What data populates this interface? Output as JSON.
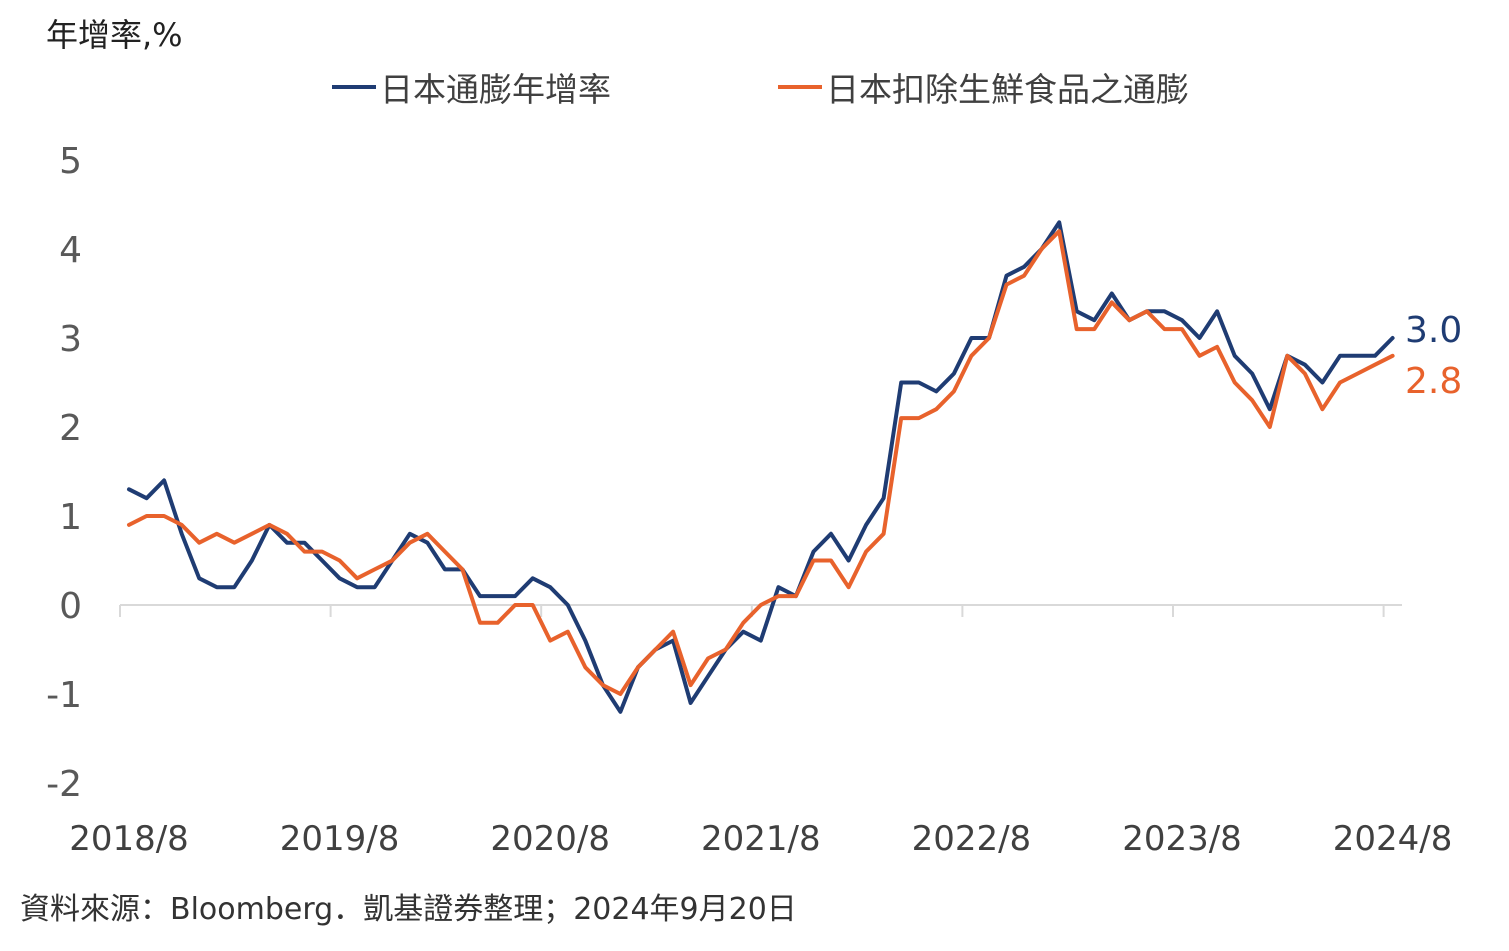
{
  "unit_label": "年增率,%",
  "source_note": "資料來源：Bloomberg．凱基證券整理；2024年9月20日",
  "colors": {
    "headline": "#1F3C73",
    "core": "#E8622C",
    "axis": "#D9D9D9"
  },
  "legend": [
    {
      "name": "日本通膨年增率",
      "color": "#1F3C73"
    },
    {
      "name": "日本扣除生鮮食品之通膨",
      "color": "#E8622C"
    }
  ],
  "chart_data": {
    "type": "line",
    "x_start": "2018/8",
    "x_ticks": [
      "2018/8",
      "2019/8",
      "2020/8",
      "2021/8",
      "2022/8",
      "2023/8",
      "2024/8"
    ],
    "y_ticks": [
      "5",
      "4",
      "3",
      "2",
      "1",
      "0",
      "-1",
      "-2"
    ],
    "ylim": [
      -2,
      5
    ],
    "series": [
      {
        "name": "日本通膨年增率",
        "color": "#1F3C73",
        "end_label": "3.0",
        "values": [
          1.3,
          1.2,
          1.4,
          0.8,
          0.3,
          0.2,
          0.2,
          0.5,
          0.9,
          0.7,
          0.7,
          0.5,
          0.3,
          0.2,
          0.2,
          0.5,
          0.8,
          0.7,
          0.4,
          0.4,
          0.1,
          0.1,
          0.1,
          0.3,
          0.2,
          0.0,
          -0.4,
          -0.9,
          -1.2,
          -0.7,
          -0.5,
          -0.4,
          -1.1,
          -0.8,
          -0.5,
          -0.3,
          -0.4,
          0.2,
          0.1,
          0.6,
          0.8,
          0.5,
          0.9,
          1.2,
          2.5,
          2.5,
          2.4,
          2.6,
          3.0,
          3.0,
          3.7,
          3.8,
          4.0,
          4.3,
          3.3,
          3.2,
          3.5,
          3.2,
          3.3,
          3.3,
          3.2,
          3.0,
          3.3,
          2.8,
          2.6,
          2.2,
          2.8,
          2.7,
          2.5,
          2.8,
          2.8,
          2.8,
          3.0
        ]
      },
      {
        "name": "日本扣除生鮮食品之通膨",
        "color": "#E8622C",
        "end_label": "2.8",
        "values": [
          0.9,
          1.0,
          1.0,
          0.9,
          0.7,
          0.8,
          0.7,
          0.8,
          0.9,
          0.8,
          0.6,
          0.6,
          0.5,
          0.3,
          0.4,
          0.5,
          0.7,
          0.8,
          0.6,
          0.4,
          -0.2,
          -0.2,
          0.0,
          0.0,
          -0.4,
          -0.3,
          -0.7,
          -0.9,
          -1.0,
          -0.7,
          -0.5,
          -0.3,
          -0.9,
          -0.6,
          -0.5,
          -0.2,
          0.0,
          0.1,
          0.1,
          0.5,
          0.5,
          0.2,
          0.6,
          0.8,
          2.1,
          2.1,
          2.2,
          2.4,
          2.8,
          3.0,
          3.6,
          3.7,
          4.0,
          4.2,
          3.1,
          3.1,
          3.4,
          3.2,
          3.3,
          3.1,
          3.1,
          2.8,
          2.9,
          2.5,
          2.3,
          2.0,
          2.8,
          2.6,
          2.2,
          2.5,
          2.6,
          2.7,
          2.8
        ]
      }
    ]
  }
}
